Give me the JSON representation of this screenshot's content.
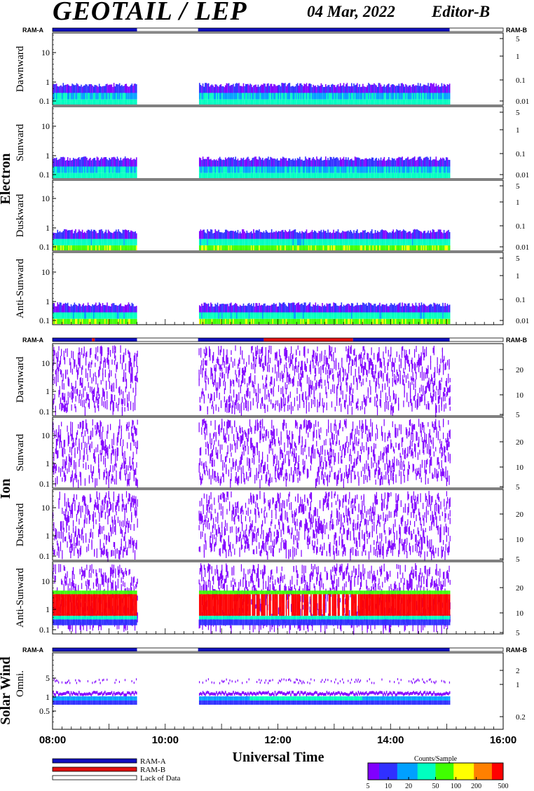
{
  "header": {
    "title": "GEOTAIL / LEP",
    "date": "04 Mar, 2022",
    "editor": "Editor-B"
  },
  "colors": {
    "ram_a": "#1010c0",
    "ram_b": "#e01010",
    "lack_of_data": "#ffffff",
    "frame": "#000000"
  },
  "ram_labels": {
    "left": "RAM-A",
    "right": "RAM-B"
  },
  "groups": [
    {
      "name": "Electron",
      "panels": [
        "Dawnward",
        "Sunward",
        "Duskward",
        "Anti-Sunward"
      ]
    },
    {
      "name": "Ion",
      "panels": [
        "Dawnward",
        "Sunward",
        "Duskward",
        "Anti-Sunward"
      ]
    },
    {
      "name": "Solar Wind",
      "panels": [
        "Omni."
      ]
    }
  ],
  "chart_data": {
    "type": "heatmap",
    "x": {
      "label": "Universal Time",
      "range": [
        "08:00",
        "16:00"
      ],
      "ticks": [
        "08:00",
        "10:00",
        "12:00",
        "14:00",
        "16:00"
      ]
    },
    "data_intervals": [
      [
        "08:00",
        "09:30"
      ],
      [
        "10:35",
        "15:03"
      ]
    ],
    "ram_state_electron": [
      {
        "from": "08:00",
        "to": "09:30",
        "state": "RAM-A"
      },
      {
        "from": "09:30",
        "to": "10:35",
        "state": "Lack of Data"
      },
      {
        "from": "10:35",
        "to": "15:03",
        "state": "RAM-A"
      },
      {
        "from": "15:03",
        "to": "16:00",
        "state": "Lack of Data"
      }
    ],
    "ram_state_ion": [
      {
        "from": "08:00",
        "to": "08:42",
        "state": "RAM-A"
      },
      {
        "from": "08:42",
        "to": "08:45",
        "state": "RAM-B"
      },
      {
        "from": "08:45",
        "to": "09:30",
        "state": "RAM-A"
      },
      {
        "from": "09:30",
        "to": "10:35",
        "state": "Lack of Data"
      },
      {
        "from": "10:35",
        "to": "11:45",
        "state": "RAM-A"
      },
      {
        "from": "11:45",
        "to": "13:20",
        "state": "RAM-B"
      },
      {
        "from": "13:20",
        "to": "15:03",
        "state": "RAM-A"
      },
      {
        "from": "15:03",
        "to": "16:00",
        "state": "Lack of Data"
      }
    ],
    "ram_state_solar_wind": [
      {
        "from": "08:00",
        "to": "09:30",
        "state": "RAM-A"
      },
      {
        "from": "09:30",
        "to": "10:35",
        "state": "Lack of Data"
      },
      {
        "from": "10:35",
        "to": "15:03",
        "state": "RAM-A"
      },
      {
        "from": "15:03",
        "to": "16:00",
        "state": "Lack of Data"
      }
    ],
    "electron_left_axis": {
      "scale": "log",
      "ticks": [
        "0.1",
        "1",
        "10"
      ]
    },
    "electron_right_axis": {
      "scale": "log",
      "ticks": [
        "0.01",
        "0.1",
        "1",
        "5"
      ]
    },
    "ion_left_axis": {
      "scale": "log",
      "ticks": [
        "0.1",
        "1",
        "10"
      ]
    },
    "ion_right_axis": {
      "ticks": [
        "5",
        "10",
        "20"
      ]
    },
    "sw_left_axis": {
      "scale": "log",
      "ticks": [
        "0.5",
        "1",
        "5"
      ]
    },
    "sw_right_axis": {
      "ticks": [
        "0.2",
        "1",
        "2"
      ]
    },
    "colorbar": {
      "label": "Counts/Sample",
      "scale": "log",
      "range": [
        5,
        500
      ],
      "ticks": [
        "5",
        "10",
        "20",
        "50",
        "100",
        "200",
        "500"
      ],
      "colors": [
        "#8000ff",
        "#3030ff",
        "#00a0ff",
        "#00ffc0",
        "#40ff00",
        "#ffff00",
        "#ff8000",
        "#ff0000"
      ]
    },
    "legend": [
      {
        "label": "RAM-A",
        "color": "#1010c0"
      },
      {
        "label": "RAM-B",
        "color": "#e01010"
      },
      {
        "label": "Lack of Data",
        "color": "#ffffff"
      }
    ]
  }
}
